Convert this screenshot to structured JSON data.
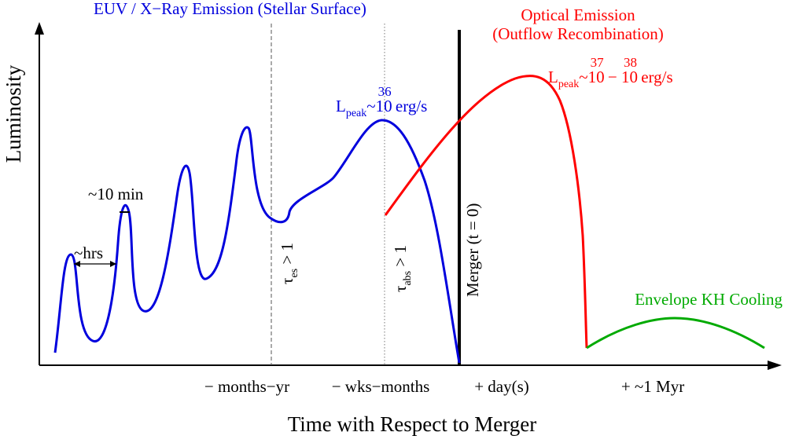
{
  "figure": {
    "y_axis_label": "Luminosity",
    "x_axis_label": "Time with Respect to Merger",
    "x_ticks": [
      "− months−yr",
      "− wks−months",
      "+ day(s)",
      "+ ~1 Myr"
    ],
    "headers": {
      "euv": "EUV / X−Ray Emission (Stellar Surface)",
      "optical_line1": "Optical Emission",
      "optical_line2": "(Outflow Recombination)"
    },
    "annotations": {
      "hrs": "~hrs",
      "ten_min": "~10 min",
      "tau_es": "τ",
      "tau_es_sub": "es",
      "tau_es_rest": " > 1",
      "tau_abs": "τ",
      "tau_abs_sub": "abs",
      "tau_abs_rest": " > 1",
      "merger": "Merger (t = 0)",
      "kh_cooling": "Envelope KH Cooling",
      "lpeak_blue": {
        "L": "L",
        "sub": "peak",
        "tilde": "~",
        "base": "10",
        "exp": "36",
        "unit": " erg/s"
      },
      "lpeak_red": {
        "L": "L",
        "sub": "peak",
        "tilde": "~",
        "base1": "10",
        "exp1": "37",
        "dash": " − ",
        "base2": "10",
        "exp2": "38",
        "unit": " erg/s"
      }
    },
    "colors": {
      "euv": "#0000dd",
      "optical": "#ff0000",
      "kh": "#00aa00",
      "axis": "#000000"
    }
  }
}
